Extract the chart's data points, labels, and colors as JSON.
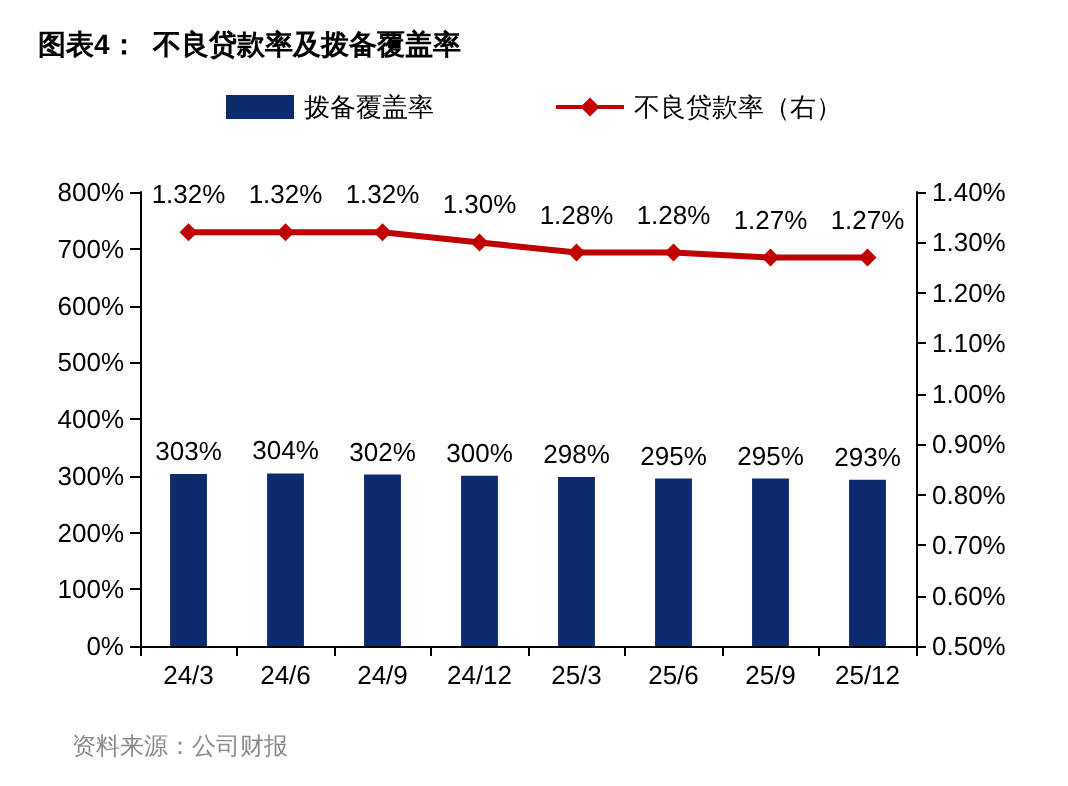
{
  "chart_data": {
    "type": "bar",
    "title": "图表4：  不良贷款率及拨备覆盖率",
    "categories": [
      "24/3",
      "24/6",
      "24/9",
      "24/12",
      "25/3",
      "25/6",
      "25/9",
      "25/12"
    ],
    "series": [
      {
        "name": "拨备覆盖率",
        "color": "#0c2a6e",
        "values": [
          303,
          304,
          302,
          300,
          298,
          295,
          295,
          293
        ],
        "value_labels": [
          "303%",
          "304%",
          "302%",
          "300%",
          "298%",
          "295%",
          "295%",
          "293%"
        ]
      },
      {
        "name": "不良贷款率（右）",
        "type": "line",
        "axis": "y2",
        "color": "#c00000",
        "marker": "diamond",
        "values": [
          1.32,
          1.32,
          1.32,
          1.3,
          1.28,
          1.28,
          1.27,
          1.27
        ],
        "value_labels": [
          "1.32%",
          "1.32%",
          "1.32%",
          "1.30%",
          "1.28%",
          "1.28%",
          "1.27%",
          "1.27%"
        ]
      }
    ],
    "ylim": [
      0,
      800
    ],
    "yticks": [
      {
        "value": 0,
        "label": "0%"
      },
      {
        "value": 100,
        "label": "100%"
      },
      {
        "value": 200,
        "label": "200%"
      },
      {
        "value": 300,
        "label": "300%"
      },
      {
        "value": 400,
        "label": "400%"
      },
      {
        "value": 500,
        "label": "500%"
      },
      {
        "value": 600,
        "label": "600%"
      },
      {
        "value": 700,
        "label": "700%"
      },
      {
        "value": 800,
        "label": "800%"
      }
    ],
    "y2lim": [
      0.5,
      1.4
    ],
    "y2ticks": [
      {
        "value": 0.5,
        "label": "0.50%"
      },
      {
        "value": 0.6,
        "label": "0.60%"
      },
      {
        "value": 0.7,
        "label": "0.70%"
      },
      {
        "value": 0.8,
        "label": "0.80%"
      },
      {
        "value": 0.9,
        "label": "0.90%"
      },
      {
        "value": 1.0,
        "label": "1.00%"
      },
      {
        "value": 1.1,
        "label": "1.10%"
      },
      {
        "value": 1.2,
        "label": "1.20%"
      },
      {
        "value": 1.3,
        "label": "1.30%"
      },
      {
        "value": 1.4,
        "label": "1.40%"
      }
    ],
    "grid": false,
    "legend": "top",
    "annotations": [
      "资料来源：公司财报"
    ]
  }
}
